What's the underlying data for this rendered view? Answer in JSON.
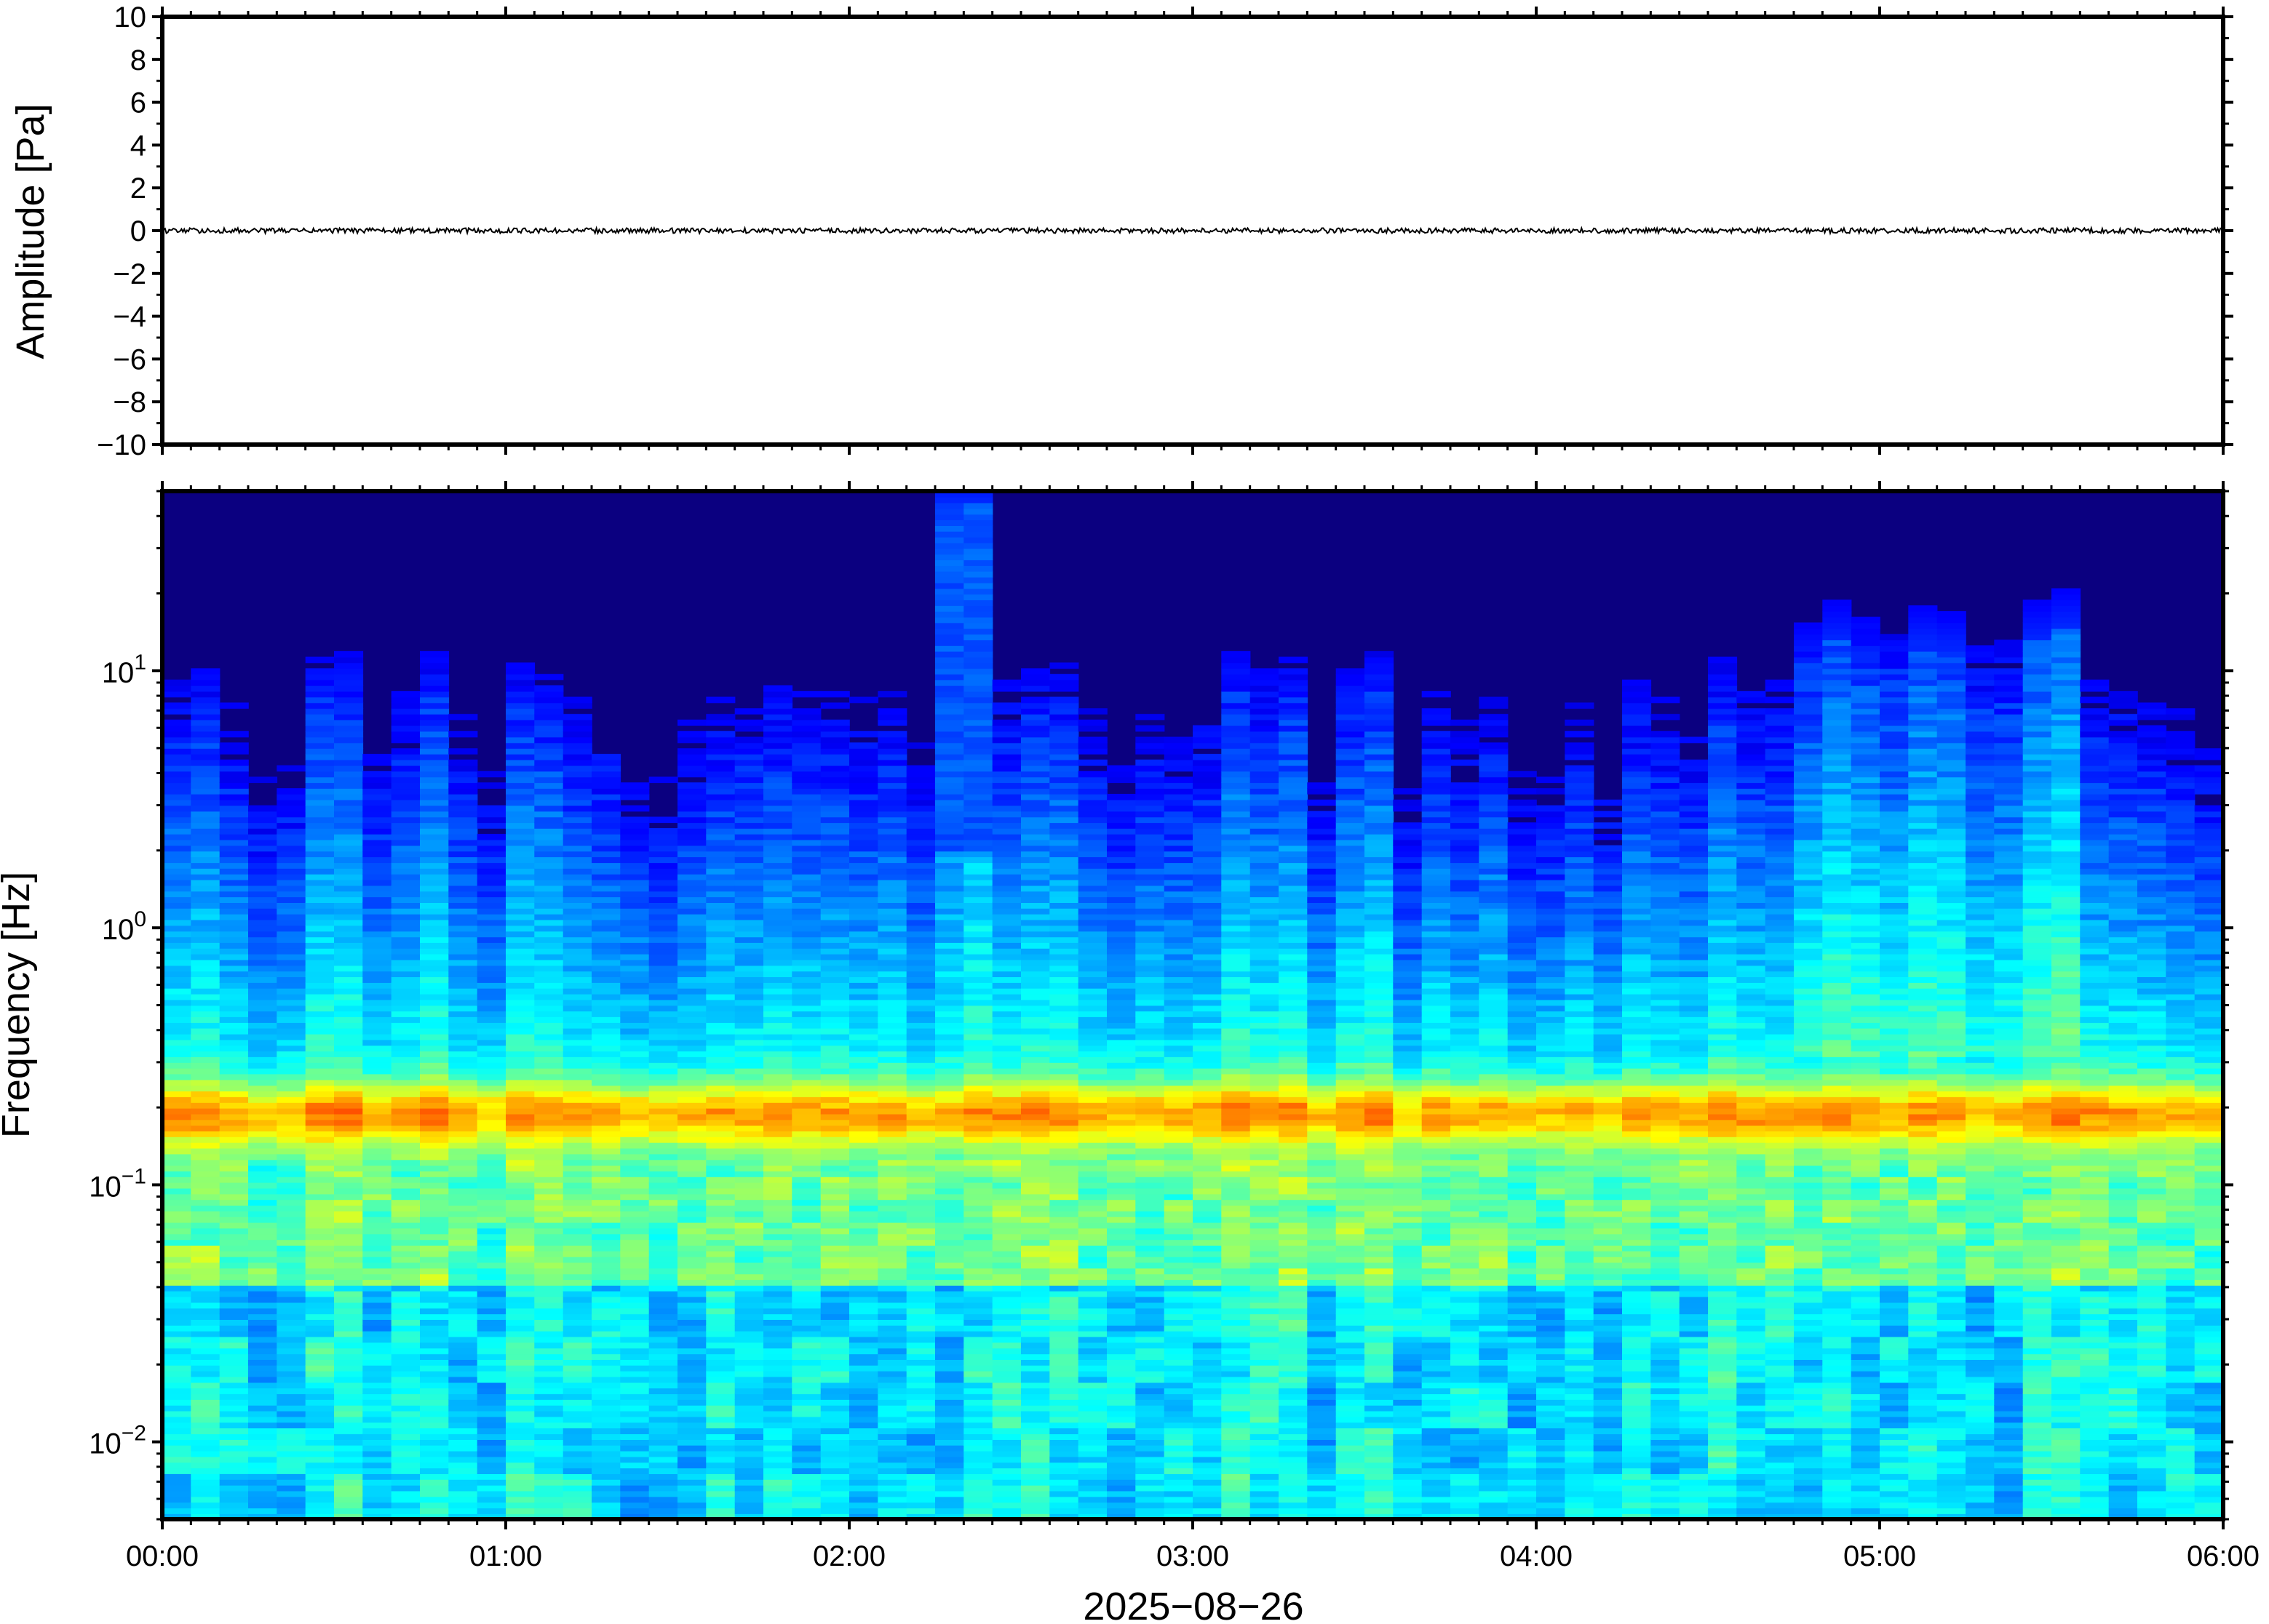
{
  "chart_data": [
    {
      "type": "line",
      "panel": "waveform",
      "ylabel": "Amplitude [Pa]",
      "ylim": [
        -10,
        10
      ],
      "yticks": [
        -10,
        -8,
        -6,
        -4,
        -2,
        0,
        2,
        4,
        6,
        8,
        10
      ],
      "ytick_labels": [
        "−10",
        "−8",
        "−6",
        "−4",
        "−2",
        "0",
        "2",
        "4",
        "6",
        "8",
        "10"
      ],
      "xlim": [
        "00:00",
        "06:00"
      ],
      "series": [
        {
          "trace_color": "#000000",
          "level_pa": 0.0,
          "noise_amplitude_pa": 0.12
        }
      ]
    },
    {
      "type": "heatmap",
      "panel": "spectrogram",
      "ylabel": "Frequency [Hz]",
      "yscale": "log",
      "ylim": [
        0.005,
        50
      ],
      "ytick_labels": [
        {
          "base": "10",
          "exp": "1",
          "value": 10
        },
        {
          "base": "10",
          "exp": "0",
          "value": 1
        },
        {
          "base": "10",
          "exp": "−1",
          "value": 0.1
        },
        {
          "base": "10",
          "exp": "−2",
          "value": 0.01
        }
      ],
      "xlim": [
        "00:00",
        "06:00"
      ],
      "colormap": "jet",
      "background_color": "#0b0080",
      "features": {
        "microbarom_band_hz": [
          0.14,
          0.26
        ],
        "microbarom_peak_hz": 0.19,
        "broadband_burst": {
          "start": "02:13",
          "end": "02:27",
          "top_hz": 45
        },
        "elevated_period": {
          "start": "04:45",
          "end": "05:35",
          "top_hz": 15
        }
      }
    }
  ],
  "x_axis": {
    "tick_labels": [
      "00:00",
      "01:00",
      "02:00",
      "03:00",
      "04:00",
      "05:00",
      "06:00"
    ],
    "date_label": "2025−08−26"
  }
}
